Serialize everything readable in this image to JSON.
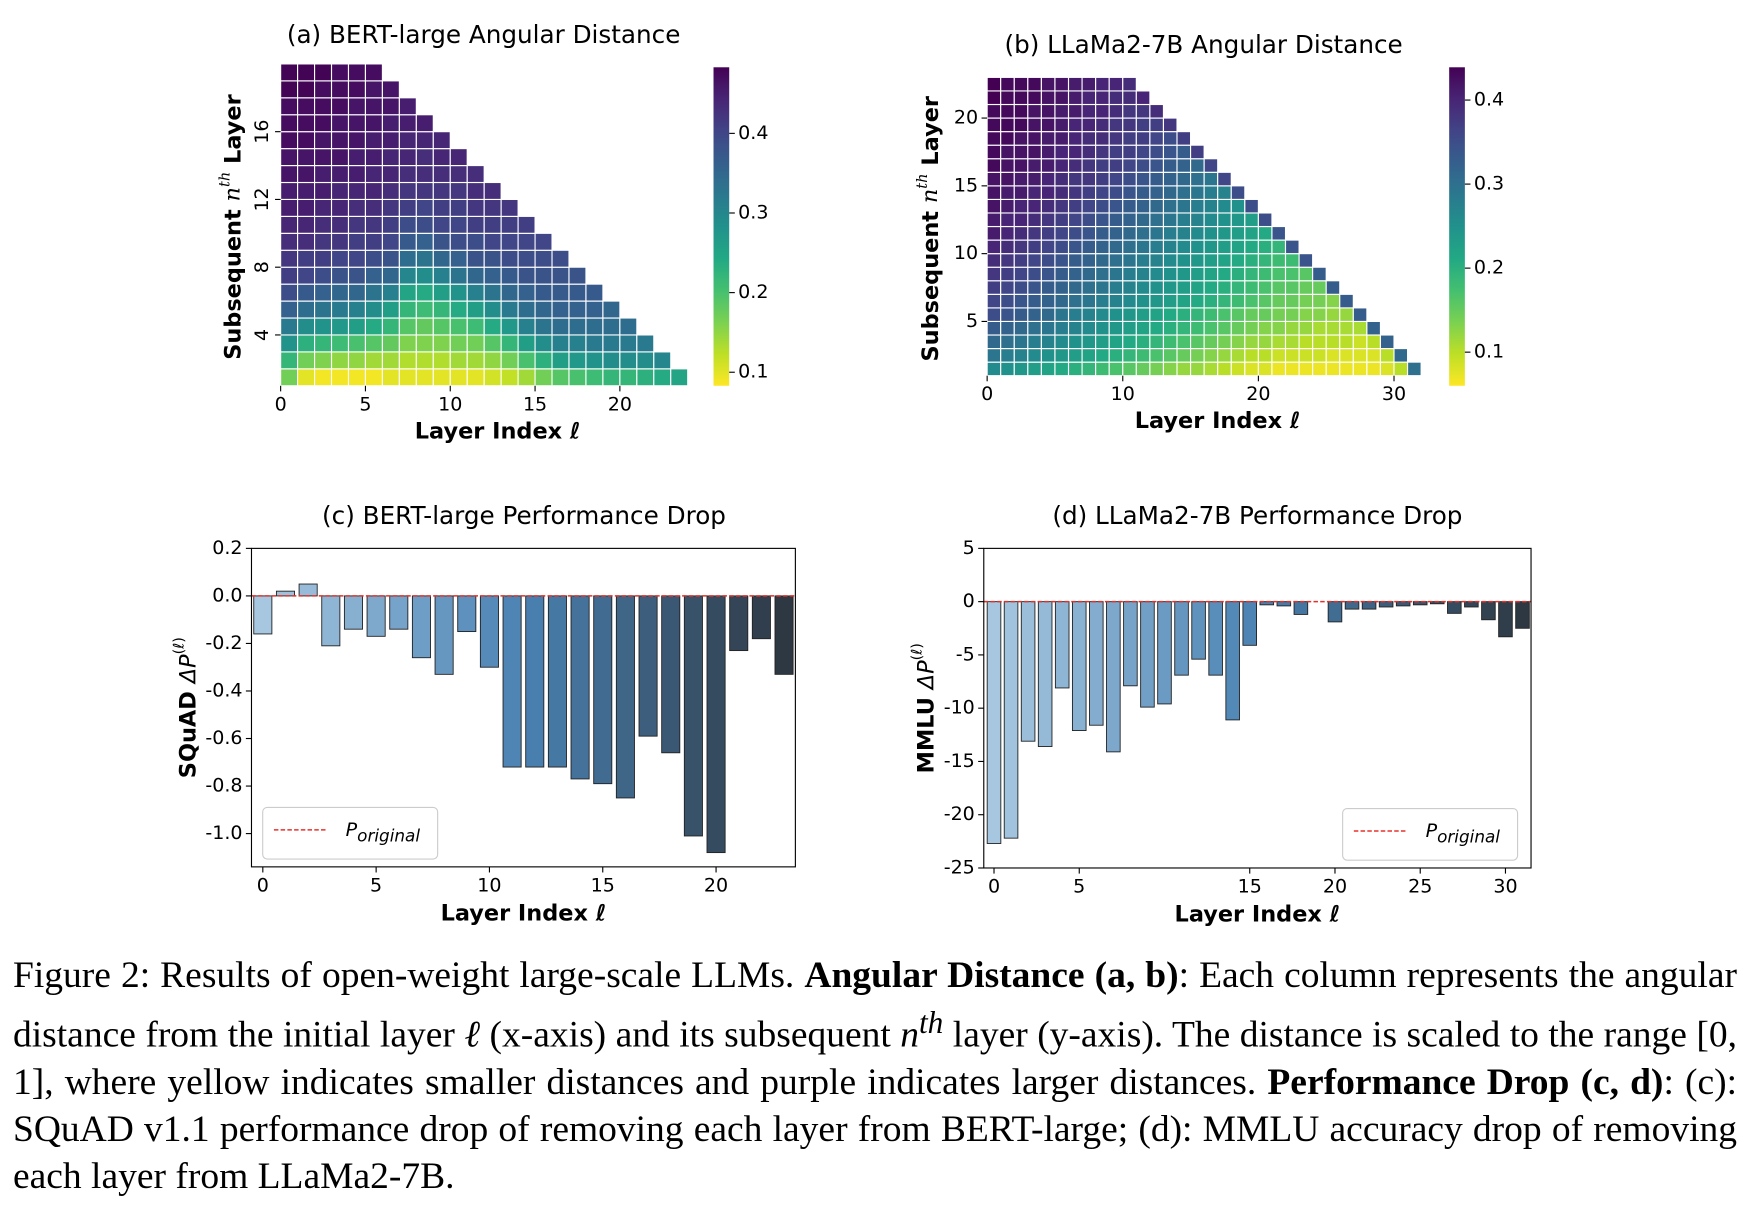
{
  "chart_data": [
    {
      "type": "heatmap",
      "title": "(a) BERT-large Angular Distance",
      "xlabel": "Layer Index ℓ",
      "ylabel_parts": [
        "Subsequent",
        "n",
        "th",
        "Layer"
      ],
      "x": [
        0,
        1,
        2,
        3,
        4,
        5,
        6,
        7,
        8,
        9,
        10,
        11,
        12,
        13,
        14,
        15,
        16,
        17,
        18,
        19,
        20,
        21,
        22,
        23
      ],
      "y": [
        1,
        2,
        3,
        4,
        5,
        6,
        7,
        8,
        9,
        10,
        11,
        12,
        13,
        14,
        15,
        16,
        17,
        18,
        19
      ],
      "xlim": [
        0,
        24
      ],
      "ylim": [
        1,
        20
      ],
      "xticks": [
        0,
        5,
        10,
        15,
        20
      ],
      "yticks": [
        4,
        8,
        12,
        16
      ],
      "colormap": "viridis_r",
      "clim": [
        0.083,
        0.483
      ],
      "cticks": [
        0.1,
        0.2,
        0.3,
        0.4
      ],
      "values": [
        [
          0.17,
          0.22,
          0.28,
          0.32,
          0.36,
          0.39,
          0.41,
          0.42,
          0.43,
          0.44,
          0.45,
          0.45,
          0.46,
          0.46,
          0.47,
          0.47,
          0.47,
          0.48,
          0.48
        ],
        [
          0.1,
          0.17,
          0.23,
          0.29,
          0.34,
          0.37,
          0.4,
          0.41,
          0.43,
          0.44,
          0.45,
          0.45,
          0.46,
          0.46,
          0.47,
          0.47,
          0.47,
          0.48,
          0.48
        ],
        [
          0.09,
          0.16,
          0.22,
          0.28,
          0.33,
          0.36,
          0.39,
          0.41,
          0.42,
          0.43,
          0.44,
          0.45,
          0.45,
          0.46,
          0.46,
          0.47,
          0.47,
          0.47,
          0.48
        ],
        [
          0.09,
          0.15,
          0.21,
          0.27,
          0.32,
          0.35,
          0.38,
          0.4,
          0.42,
          0.43,
          0.44,
          0.44,
          0.45,
          0.46,
          0.46,
          0.46,
          0.47,
          0.47,
          0.47
        ],
        [
          0.09,
          0.15,
          0.2,
          0.26,
          0.31,
          0.35,
          0.38,
          0.4,
          0.41,
          0.42,
          0.43,
          0.44,
          0.45,
          0.45,
          0.46,
          0.46,
          0.46,
          0.47,
          0.47
        ],
        [
          0.09,
          0.14,
          0.19,
          0.24,
          0.29,
          0.33,
          0.36,
          0.39,
          0.41,
          0.42,
          0.43,
          0.44,
          0.44,
          0.45,
          0.45,
          0.46,
          0.46,
          0.46,
          0.47
        ],
        [
          0.1,
          0.14,
          0.18,
          0.22,
          0.26,
          0.31,
          0.35,
          0.38,
          0.4,
          0.41,
          0.42,
          0.43,
          0.44,
          0.44,
          0.45,
          0.45,
          0.46,
          0.46
        ],
        [
          0.1,
          0.13,
          0.16,
          0.19,
          0.22,
          0.25,
          0.3,
          0.34,
          0.37,
          0.39,
          0.41,
          0.42,
          0.43,
          0.44,
          0.44,
          0.45,
          0.45
        ],
        [
          0.1,
          0.13,
          0.16,
          0.18,
          0.21,
          0.24,
          0.29,
          0.33,
          0.36,
          0.39,
          0.4,
          0.42,
          0.43,
          0.43,
          0.44,
          0.45
        ],
        [
          0.1,
          0.13,
          0.16,
          0.19,
          0.22,
          0.26,
          0.31,
          0.35,
          0.38,
          0.4,
          0.41,
          0.42,
          0.43,
          0.44,
          0.44
        ],
        [
          0.1,
          0.14,
          0.17,
          0.2,
          0.24,
          0.28,
          0.33,
          0.36,
          0.39,
          0.4,
          0.41,
          0.42,
          0.43,
          0.44
        ],
        [
          0.1,
          0.14,
          0.17,
          0.21,
          0.26,
          0.31,
          0.35,
          0.38,
          0.39,
          0.41,
          0.42,
          0.43,
          0.43
        ],
        [
          0.11,
          0.15,
          0.19,
          0.24,
          0.29,
          0.33,
          0.36,
          0.38,
          0.4,
          0.41,
          0.42,
          0.43
        ],
        [
          0.12,
          0.17,
          0.22,
          0.27,
          0.32,
          0.35,
          0.37,
          0.39,
          0.4,
          0.41,
          0.42
        ],
        [
          0.14,
          0.2,
          0.26,
          0.31,
          0.34,
          0.36,
          0.38,
          0.39,
          0.4,
          0.41
        ],
        [
          0.17,
          0.23,
          0.29,
          0.33,
          0.35,
          0.37,
          0.38,
          0.39,
          0.4
        ],
        [
          0.19,
          0.26,
          0.31,
          0.34,
          0.36,
          0.37,
          0.38,
          0.39
        ],
        [
          0.2,
          0.27,
          0.31,
          0.34,
          0.36,
          0.37,
          0.38
        ],
        [
          0.21,
          0.28,
          0.32,
          0.34,
          0.36,
          0.37
        ],
        [
          0.22,
          0.29,
          0.32,
          0.34,
          0.35
        ],
        [
          0.22,
          0.29,
          0.32,
          0.34
        ],
        [
          0.23,
          0.29,
          0.32
        ],
        [
          0.24,
          0.3
        ],
        [
          0.25
        ]
      ]
    },
    {
      "type": "heatmap",
      "title": "(b) LLaMa2-7B Angular Distance",
      "xlabel": "Layer Index ℓ",
      "ylabel_parts": [
        "Subsequent",
        "n",
        "th",
        "Layer"
      ],
      "x": [
        0,
        1,
        2,
        3,
        4,
        5,
        6,
        7,
        8,
        9,
        10,
        11,
        12,
        13,
        14,
        15,
        16,
        17,
        18,
        19,
        20,
        21,
        22,
        23,
        24,
        25,
        26,
        27,
        28,
        29,
        30,
        31
      ],
      "y": [
        1,
        2,
        3,
        4,
        5,
        6,
        7,
        8,
        9,
        10,
        11,
        12,
        13,
        14,
        15,
        16,
        17,
        18,
        19,
        20,
        21,
        22
      ],
      "xlim": [
        0,
        32
      ],
      "ylim": [
        1,
        23
      ],
      "xticks": [
        0,
        10,
        20,
        30
      ],
      "yticks": [
        5,
        10,
        15,
        20
      ],
      "colormap": "viridis_r",
      "clim": [
        0.06,
        0.439
      ],
      "cticks": [
        0.1,
        0.2,
        0.3,
        0.4
      ],
      "values": [
        [
          0.26,
          0.29,
          0.31,
          0.33,
          0.35,
          0.36,
          0.37,
          0.38,
          0.39,
          0.4,
          0.41,
          0.41,
          0.42,
          0.42,
          0.42,
          0.43,
          0.43,
          0.43,
          0.43,
          0.43,
          0.44,
          0.44
        ],
        [
          0.25,
          0.28,
          0.3,
          0.32,
          0.34,
          0.35,
          0.36,
          0.37,
          0.38,
          0.39,
          0.4,
          0.4,
          0.41,
          0.41,
          0.42,
          0.42,
          0.42,
          0.43,
          0.43,
          0.43,
          0.43,
          0.43
        ],
        [
          0.24,
          0.27,
          0.29,
          0.31,
          0.33,
          0.34,
          0.35,
          0.36,
          0.37,
          0.38,
          0.39,
          0.4,
          0.4,
          0.41,
          0.41,
          0.42,
          0.42,
          0.42,
          0.43,
          0.43,
          0.43,
          0.43
        ],
        [
          0.23,
          0.26,
          0.28,
          0.3,
          0.32,
          0.33,
          0.34,
          0.35,
          0.36,
          0.37,
          0.38,
          0.39,
          0.4,
          0.4,
          0.41,
          0.41,
          0.42,
          0.42,
          0.42,
          0.42,
          0.43,
          0.43
        ],
        [
          0.22,
          0.25,
          0.27,
          0.29,
          0.31,
          0.32,
          0.33,
          0.34,
          0.35,
          0.36,
          0.37,
          0.38,
          0.39,
          0.4,
          0.4,
          0.41,
          0.41,
          0.41,
          0.42,
          0.42,
          0.42,
          0.42
        ],
        [
          0.21,
          0.24,
          0.26,
          0.28,
          0.29,
          0.31,
          0.32,
          0.33,
          0.34,
          0.35,
          0.36,
          0.37,
          0.38,
          0.39,
          0.39,
          0.4,
          0.4,
          0.41,
          0.41,
          0.41,
          0.42,
          0.42
        ],
        [
          0.2,
          0.23,
          0.25,
          0.27,
          0.28,
          0.3,
          0.31,
          0.32,
          0.33,
          0.34,
          0.35,
          0.36,
          0.37,
          0.38,
          0.38,
          0.39,
          0.4,
          0.4,
          0.4,
          0.41,
          0.41,
          0.41
        ],
        [
          0.19,
          0.22,
          0.24,
          0.26,
          0.27,
          0.29,
          0.3,
          0.31,
          0.32,
          0.33,
          0.34,
          0.35,
          0.36,
          0.37,
          0.38,
          0.38,
          0.39,
          0.39,
          0.4,
          0.4,
          0.4,
          0.41
        ],
        [
          0.18,
          0.21,
          0.23,
          0.25,
          0.26,
          0.28,
          0.29,
          0.3,
          0.31,
          0.32,
          0.33,
          0.34,
          0.35,
          0.36,
          0.37,
          0.37,
          0.38,
          0.39,
          0.39,
          0.4,
          0.4,
          0.4
        ],
        [
          0.17,
          0.2,
          0.22,
          0.24,
          0.25,
          0.27,
          0.28,
          0.29,
          0.3,
          0.31,
          0.32,
          0.33,
          0.34,
          0.35,
          0.36,
          0.37,
          0.37,
          0.38,
          0.38,
          0.39,
          0.39,
          0.4
        ],
        [
          0.16,
          0.19,
          0.21,
          0.23,
          0.24,
          0.26,
          0.27,
          0.28,
          0.29,
          0.3,
          0.31,
          0.32,
          0.33,
          0.34,
          0.35,
          0.36,
          0.37,
          0.37,
          0.38,
          0.38,
          0.39,
          0.39
        ],
        [
          0.15,
          0.18,
          0.2,
          0.22,
          0.23,
          0.25,
          0.26,
          0.27,
          0.28,
          0.29,
          0.3,
          0.31,
          0.32,
          0.33,
          0.34,
          0.35,
          0.36,
          0.37,
          0.37,
          0.38,
          0.4
        ],
        [
          0.14,
          0.17,
          0.19,
          0.21,
          0.22,
          0.24,
          0.25,
          0.26,
          0.27,
          0.28,
          0.29,
          0.3,
          0.31,
          0.32,
          0.33,
          0.34,
          0.35,
          0.36,
          0.37,
          0.39
        ],
        [
          0.13,
          0.16,
          0.18,
          0.2,
          0.21,
          0.23,
          0.24,
          0.25,
          0.26,
          0.27,
          0.28,
          0.29,
          0.3,
          0.31,
          0.32,
          0.33,
          0.34,
          0.35,
          0.38
        ],
        [
          0.12,
          0.15,
          0.17,
          0.19,
          0.2,
          0.22,
          0.23,
          0.24,
          0.25,
          0.26,
          0.27,
          0.28,
          0.29,
          0.3,
          0.31,
          0.32,
          0.33,
          0.37
        ],
        [
          0.12,
          0.14,
          0.16,
          0.18,
          0.19,
          0.21,
          0.22,
          0.23,
          0.24,
          0.25,
          0.26,
          0.27,
          0.28,
          0.29,
          0.3,
          0.31,
          0.37
        ],
        [
          0.11,
          0.13,
          0.15,
          0.17,
          0.18,
          0.2,
          0.21,
          0.22,
          0.23,
          0.24,
          0.25,
          0.26,
          0.27,
          0.28,
          0.29,
          0.36
        ],
        [
          0.1,
          0.12,
          0.14,
          0.16,
          0.17,
          0.19,
          0.2,
          0.21,
          0.22,
          0.23,
          0.24,
          0.25,
          0.26,
          0.27,
          0.36
        ],
        [
          0.09,
          0.11,
          0.13,
          0.15,
          0.16,
          0.18,
          0.19,
          0.2,
          0.21,
          0.22,
          0.23,
          0.24,
          0.25,
          0.35
        ],
        [
          0.08,
          0.1,
          0.12,
          0.14,
          0.15,
          0.17,
          0.18,
          0.19,
          0.2,
          0.21,
          0.22,
          0.23,
          0.35
        ],
        [
          0.08,
          0.1,
          0.12,
          0.13,
          0.15,
          0.16,
          0.17,
          0.18,
          0.19,
          0.2,
          0.21,
          0.35
        ],
        [
          0.07,
          0.09,
          0.11,
          0.13,
          0.14,
          0.15,
          0.16,
          0.17,
          0.18,
          0.19,
          0.34
        ],
        [
          0.07,
          0.09,
          0.11,
          0.12,
          0.14,
          0.15,
          0.16,
          0.17,
          0.18,
          0.34
        ],
        [
          0.07,
          0.09,
          0.1,
          0.12,
          0.13,
          0.14,
          0.15,
          0.16,
          0.34
        ],
        [
          0.07,
          0.09,
          0.1,
          0.11,
          0.13,
          0.14,
          0.15,
          0.33
        ],
        [
          0.07,
          0.08,
          0.1,
          0.11,
          0.12,
          0.13,
          0.33
        ],
        [
          0.07,
          0.08,
          0.1,
          0.11,
          0.12,
          0.33
        ],
        [
          0.07,
          0.08,
          0.09,
          0.11,
          0.33
        ],
        [
          0.07,
          0.08,
          0.1,
          0.32
        ],
        [
          0.08,
          0.1,
          0.32
        ],
        [
          0.1,
          0.31
        ],
        [
          0.3
        ]
      ]
    },
    {
      "type": "bar",
      "title": "(c) BERT-large Performance Drop",
      "xlabel": "Layer Index ℓ",
      "ylabel_parts": [
        "SQuAD",
        "ΔP",
        "(ℓ)"
      ],
      "x": [
        0,
        1,
        2,
        3,
        4,
        5,
        6,
        7,
        8,
        9,
        10,
        11,
        12,
        13,
        14,
        15,
        16,
        17,
        18,
        19,
        20,
        21,
        22,
        23
      ],
      "values": [
        -0.16,
        0.02,
        0.05,
        -0.21,
        -0.14,
        -0.17,
        -0.14,
        -0.26,
        -0.33,
        -0.15,
        -0.3,
        -0.72,
        -0.72,
        -0.72,
        -0.77,
        -0.79,
        -0.85,
        -0.59,
        -0.66,
        -1.01,
        -1.08,
        -0.23,
        -0.18,
        -0.33
      ],
      "xlim": [
        -0.5,
        23.5
      ],
      "ylim": [
        -1.14,
        0.2
      ],
      "xticks": [
        0,
        5,
        10,
        15,
        20
      ],
      "yticks": [
        0.2,
        {
          "value": 0,
          "label": "0.0"
        },
        -0.2,
        -0.4,
        -0.6,
        -0.8,
        {
          "value": -1,
          "label": "-1.0"
        }
      ],
      "bar_colors": [
        "#a7c7e0",
        "#4a82b3",
        "#2e3843"
      ],
      "reference_line": {
        "value": 0,
        "color": "#e8302a",
        "name": "P",
        "name_sub": "original"
      },
      "legend": "lower left"
    },
    {
      "type": "bar",
      "title": "(d) LLaMa2-7B Performance Drop",
      "xlabel": "Layer Index ℓ",
      "ylabel_parts": [
        "MMLU",
        "ΔP",
        "(ℓ)"
      ],
      "x": [
        0,
        1,
        2,
        3,
        4,
        5,
        6,
        7,
        8,
        9,
        10,
        11,
        12,
        13,
        14,
        15,
        16,
        17,
        18,
        19,
        20,
        21,
        22,
        23,
        24,
        25,
        26,
        27,
        28,
        29,
        30,
        31
      ],
      "values": [
        -22.7,
        -22.2,
        -13.1,
        -13.6,
        -8.1,
        -12.1,
        -11.6,
        -14.1,
        -7.9,
        -9.9,
        -9.6,
        -6.9,
        -5.4,
        -6.9,
        -11.1,
        -4.1,
        -0.3,
        -0.4,
        -1.2,
        0,
        -1.9,
        -0.7,
        -0.7,
        -0.5,
        -0.4,
        -0.3,
        -0.2,
        -1.1,
        -0.5,
        -1.7,
        -3.3,
        -2.5
      ],
      "xlim": [
        -0.6,
        31.5
      ],
      "ylim": [
        -25,
        5
      ],
      "xticks": [
        0,
        5,
        15,
        20,
        25,
        30
      ],
      "yticks": [
        5,
        0,
        -5,
        -10,
        -15,
        -20,
        -25
      ],
      "bar_colors": [
        "#a7c7e0",
        "#4a82b3",
        "#2e3843"
      ],
      "reference_line": {
        "value": 0,
        "color": "#e8302a",
        "name": "P",
        "name_sub": "original"
      },
      "legend": "lower right"
    }
  ],
  "caption": [
    "Figure 2: Results of open-weight large-scale LLMs. ",
    "Angular Distance (a, b)",
    ": Each column represents the angular distance from the initial layer ",
    "ℓ",
    " (x-axis) and its subsequent ",
    "n",
    "th",
    " layer (y-axis). The distance is scaled to the range [0, 1], where yellow indicates smaller distances and purple indicates larger distances. ",
    "Performance Drop (c, d)",
    ": (c): SQuAD v1.1 performance drop of removing each layer from BERT-large; (d): MMLU accuracy drop of removing each layer from LLaMa2-7B."
  ]
}
